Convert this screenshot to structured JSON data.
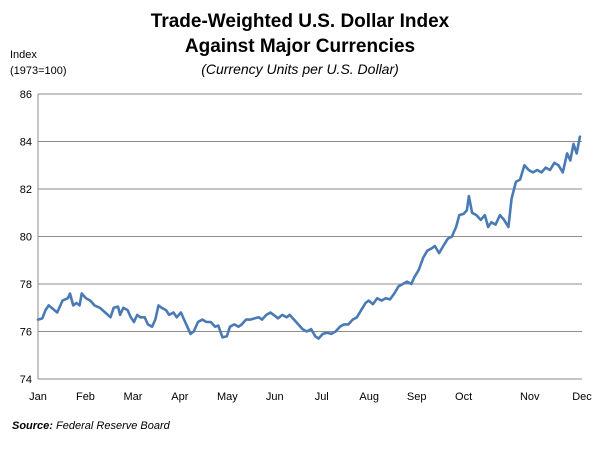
{
  "chart_data": {
    "type": "line",
    "title": "Trade-Weighted U.S. Dollar Index",
    "title_line2": "Against Major Currencies",
    "subtitle": "(Currency Units per U.S. Dollar)",
    "ylabel_line1": "Index",
    "ylabel_line2": "(1973=100)",
    "source_label": "Source:",
    "source_text": "Federal Reserve Board",
    "ylim": [
      74,
      86
    ],
    "yticks": [
      74,
      76,
      78,
      80,
      82,
      84,
      86
    ],
    "xlim": [
      0,
      51
    ],
    "xticks": [
      {
        "label": "Jan",
        "x": 0
      },
      {
        "label": "Feb",
        "x": 4.45
      },
      {
        "label": "Mar",
        "x": 8.9
      },
      {
        "label": "Apr",
        "x": 13.3
      },
      {
        "label": "May",
        "x": 17.75
      },
      {
        "label": "Jun",
        "x": 22.2
      },
      {
        "label": "Jul",
        "x": 26.6
      },
      {
        "label": "Aug",
        "x": 31.05
      },
      {
        "label": "Sep",
        "x": 35.5
      },
      {
        "label": "Oct",
        "x": 39.9
      },
      {
        "label": "Nov",
        "x": 46.1
      },
      {
        "label": "Dec",
        "x": 51
      }
    ],
    "grid": true,
    "line_color": "#4a7ab5",
    "series": [
      {
        "values": [
          [
            0,
            76.5
          ],
          [
            0.4,
            76.55
          ],
          [
            0.7,
            76.9
          ],
          [
            1.0,
            77.1
          ],
          [
            1.4,
            76.95
          ],
          [
            1.8,
            76.8
          ],
          [
            2.3,
            77.3
          ],
          [
            2.8,
            77.4
          ],
          [
            3.0,
            77.6
          ],
          [
            3.3,
            77.1
          ],
          [
            3.6,
            77.2
          ],
          [
            3.9,
            77.1
          ],
          [
            4.1,
            77.6
          ],
          [
            4.5,
            77.4
          ],
          [
            4.9,
            77.3
          ],
          [
            5.3,
            77.1
          ],
          [
            5.8,
            77.0
          ],
          [
            6.3,
            76.8
          ],
          [
            6.8,
            76.6
          ],
          [
            7.1,
            77.0
          ],
          [
            7.5,
            77.05
          ],
          [
            7.7,
            76.7
          ],
          [
            8.0,
            77.0
          ],
          [
            8.4,
            76.9
          ],
          [
            8.7,
            76.6
          ],
          [
            9.0,
            76.4
          ],
          [
            9.3,
            76.7
          ],
          [
            9.6,
            76.6
          ],
          [
            10.0,
            76.6
          ],
          [
            10.3,
            76.3
          ],
          [
            10.7,
            76.2
          ],
          [
            11.0,
            76.5
          ],
          [
            11.3,
            77.1
          ],
          [
            11.6,
            77.0
          ],
          [
            12.0,
            76.9
          ],
          [
            12.3,
            76.7
          ],
          [
            12.7,
            76.8
          ],
          [
            13.0,
            76.6
          ],
          [
            13.4,
            76.8
          ],
          [
            13.7,
            76.5
          ],
          [
            14.0,
            76.2
          ],
          [
            14.3,
            75.9
          ],
          [
            14.6,
            76.0
          ],
          [
            15.0,
            76.4
          ],
          [
            15.4,
            76.5
          ],
          [
            15.8,
            76.4
          ],
          [
            16.2,
            76.4
          ],
          [
            16.6,
            76.2
          ],
          [
            16.9,
            76.25
          ],
          [
            17.3,
            75.75
          ],
          [
            17.7,
            75.8
          ],
          [
            18.0,
            76.2
          ],
          [
            18.4,
            76.3
          ],
          [
            18.8,
            76.2
          ],
          [
            19.1,
            76.3
          ],
          [
            19.5,
            76.5
          ],
          [
            19.9,
            76.5
          ],
          [
            20.3,
            76.55
          ],
          [
            20.7,
            76.6
          ],
          [
            21.0,
            76.5
          ],
          [
            21.4,
            76.7
          ],
          [
            21.8,
            76.8
          ],
          [
            22.1,
            76.7
          ],
          [
            22.5,
            76.55
          ],
          [
            22.9,
            76.7
          ],
          [
            23.3,
            76.6
          ],
          [
            23.6,
            76.7
          ],
          [
            24.0,
            76.5
          ],
          [
            24.4,
            76.3
          ],
          [
            24.8,
            76.1
          ],
          [
            25.2,
            76.0
          ],
          [
            25.6,
            76.1
          ],
          [
            26.0,
            75.8
          ],
          [
            26.3,
            75.7
          ],
          [
            26.7,
            75.9
          ],
          [
            27.1,
            75.95
          ],
          [
            27.5,
            75.9
          ],
          [
            27.9,
            76.0
          ],
          [
            28.3,
            76.2
          ],
          [
            28.7,
            76.3
          ],
          [
            29.1,
            76.3
          ],
          [
            29.5,
            76.5
          ],
          [
            29.9,
            76.6
          ],
          [
            30.3,
            76.9
          ],
          [
            30.7,
            77.2
          ],
          [
            31.0,
            77.3
          ],
          [
            31.4,
            77.15
          ],
          [
            31.8,
            77.4
          ],
          [
            32.2,
            77.3
          ],
          [
            32.6,
            77.4
          ],
          [
            33.0,
            77.35
          ],
          [
            33.4,
            77.6
          ],
          [
            33.8,
            77.9
          ],
          [
            34.2,
            78.0
          ],
          [
            34.6,
            78.1
          ],
          [
            35.0,
            78.0
          ],
          [
            35.3,
            78.3
          ],
          [
            35.7,
            78.6
          ],
          [
            36.1,
            79.1
          ],
          [
            36.5,
            79.4
          ],
          [
            36.9,
            79.5
          ],
          [
            37.2,
            79.6
          ],
          [
            37.6,
            79.3
          ],
          [
            38.0,
            79.6
          ],
          [
            38.4,
            79.9
          ],
          [
            38.8,
            80.0
          ],
          [
            39.2,
            80.4
          ],
          [
            39.5,
            80.9
          ],
          [
            39.9,
            80.95
          ],
          [
            40.2,
            81.1
          ],
          [
            40.4,
            81.7
          ],
          [
            40.7,
            81.0
          ],
          [
            41.1,
            80.9
          ],
          [
            41.5,
            80.7
          ],
          [
            41.9,
            80.9
          ],
          [
            42.2,
            80.4
          ],
          [
            42.5,
            80.6
          ],
          [
            42.9,
            80.5
          ],
          [
            43.3,
            80.9
          ],
          [
            43.7,
            80.7
          ],
          [
            44.1,
            80.4
          ],
          [
            44.4,
            81.6
          ],
          [
            44.8,
            82.3
          ],
          [
            45.2,
            82.4
          ],
          [
            45.6,
            83.0
          ],
          [
            46.0,
            82.8
          ],
          [
            46.4,
            82.7
          ],
          [
            46.8,
            82.8
          ],
          [
            47.2,
            82.7
          ],
          [
            47.6,
            82.9
          ],
          [
            48.0,
            82.8
          ],
          [
            48.4,
            83.1
          ],
          [
            48.8,
            83.0
          ],
          [
            49.2,
            82.7
          ],
          [
            49.6,
            83.5
          ],
          [
            49.9,
            83.2
          ],
          [
            50.2,
            83.9
          ],
          [
            50.5,
            83.5
          ],
          [
            50.8,
            84.2
          ]
        ]
      }
    ]
  }
}
